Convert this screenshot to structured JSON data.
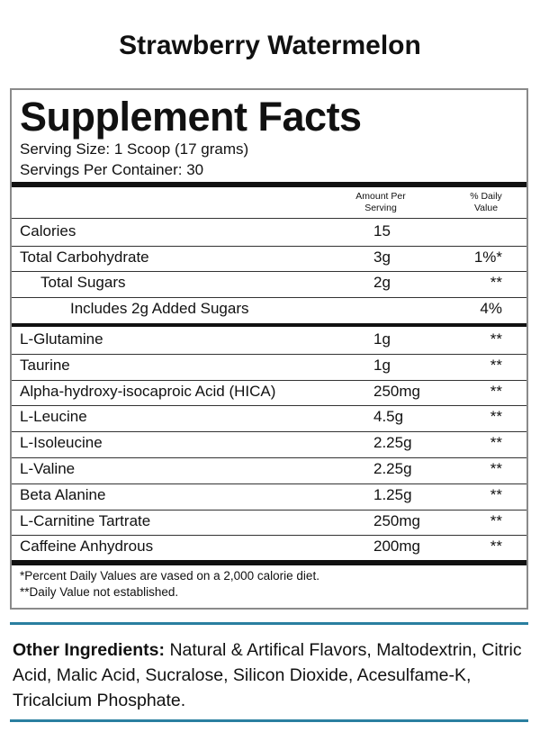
{
  "header": {
    "title": "Strawberry Watermelon"
  },
  "facts": {
    "title": "Supplement Facts",
    "serving_size": "Serving Size:  1 Scoop (17 grams)",
    "servings_per_container": "Servings Per Container: 30",
    "columns": {
      "amount": "Amount Per Serving",
      "daily_value": "% Daily Value"
    },
    "sections": [
      [
        {
          "name": "Calories",
          "amount": "15"
        },
        {
          "name": "Total Carbohydrate",
          "amount": "3g",
          "daily_value": "1%*"
        },
        {
          "name": "Total Sugars",
          "amount": "2g",
          "daily_value": "**",
          "indent": 1
        },
        {
          "name": "Includes 2g Added Sugars",
          "daily_value": "4%",
          "indent": 2
        }
      ],
      [
        {
          "name": "L-Glutamine",
          "amount": "1g",
          "daily_value": "**"
        },
        {
          "name": "Taurine",
          "amount": "1g",
          "daily_value": "**"
        },
        {
          "name": "Alpha-hydroxy-isocaproic Acid (HICA)",
          "amount": "250mg",
          "daily_value": "**"
        },
        {
          "name": "L-Leucine",
          "amount": "4.5g",
          "daily_value": "**"
        },
        {
          "name": "L-Isoleucine",
          "amount": "2.25g",
          "daily_value": "**"
        },
        {
          "name": "L-Valine",
          "amount": "2.25g",
          "daily_value": "**"
        },
        {
          "name": "Beta Alanine",
          "amount": "1.25g",
          "daily_value": "**"
        },
        {
          "name": "L-Carnitine Tartrate",
          "amount": "250mg",
          "daily_value": "**"
        },
        {
          "name": "Caffeine Anhydrous",
          "amount": "200mg",
          "daily_value": "**"
        }
      ]
    ],
    "footnotes": [
      "*Percent Daily Values are vased on a 2,000 calorie diet.",
      "**Daily Value not established."
    ]
  },
  "other_ingredients": {
    "label": "Other Ingredients:",
    "text": "Natural & Artifical Flavors, Maltodextrin, Citric Acid, Malic Acid, Sucralose, Silicon Dioxide, Acesulfame-K, Tricalcium Phosphate."
  }
}
